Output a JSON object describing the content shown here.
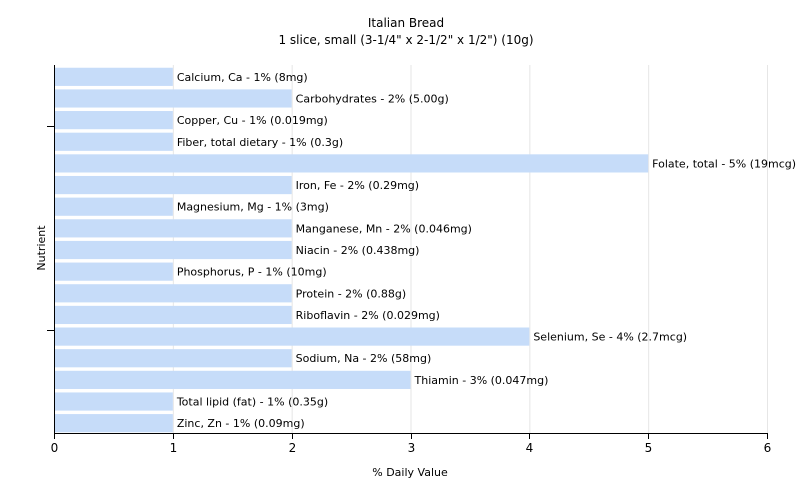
{
  "chart_data": {
    "type": "bar",
    "orientation": "horizontal",
    "title": "Italian Bread",
    "subtitle": "1 slice, small (3-1/4\" x 2-1/2\" x 1/2\") (10g)",
    "xlabel": "% Daily Value",
    "ylabel": "Nutrient",
    "xlim": [
      0,
      6
    ],
    "xticks": [
      "0",
      "1",
      "2",
      "3",
      "4",
      "5",
      "6"
    ],
    "grid": true,
    "bar_color": "#c6dcf9",
    "categories": [
      "Calcium, Ca",
      "Carbohydrates",
      "Copper, Cu",
      "Fiber, total dietary",
      "Folate, total",
      "Iron, Fe",
      "Magnesium, Mg",
      "Manganese, Mn",
      "Niacin",
      "Phosphorus, P",
      "Protein",
      "Riboflavin",
      "Selenium, Se",
      "Sodium, Na",
      "Thiamin",
      "Total lipid (fat)",
      "Zinc, Zn"
    ],
    "values": [
      1,
      2,
      1,
      1,
      5,
      2,
      1,
      2,
      2,
      1,
      2,
      2,
      4,
      2,
      3,
      1,
      1
    ],
    "labels": [
      "Calcium, Ca - 1% (8mg)",
      "Carbohydrates - 2% (5.00g)",
      "Copper, Cu - 1% (0.019mg)",
      "Fiber, total dietary - 1% (0.3g)",
      "Folate, total - 5% (19mcg)",
      "Iron, Fe - 2% (0.29mg)",
      "Magnesium, Mg - 1% (3mg)",
      "Manganese, Mn - 2% (0.046mg)",
      "Niacin - 2% (0.438mg)",
      "Phosphorus, P - 1% (10mg)",
      "Protein - 2% (0.88g)",
      "Riboflavin - 2% (0.029mg)",
      "Selenium, Se - 4% (2.7mcg)",
      "Sodium, Na - 2% (58mg)",
      "Thiamin - 3% (0.047mg)",
      "Total lipid (fat) - 1% (0.35g)",
      "Zinc, Zn - 1% (0.09mg)"
    ]
  }
}
